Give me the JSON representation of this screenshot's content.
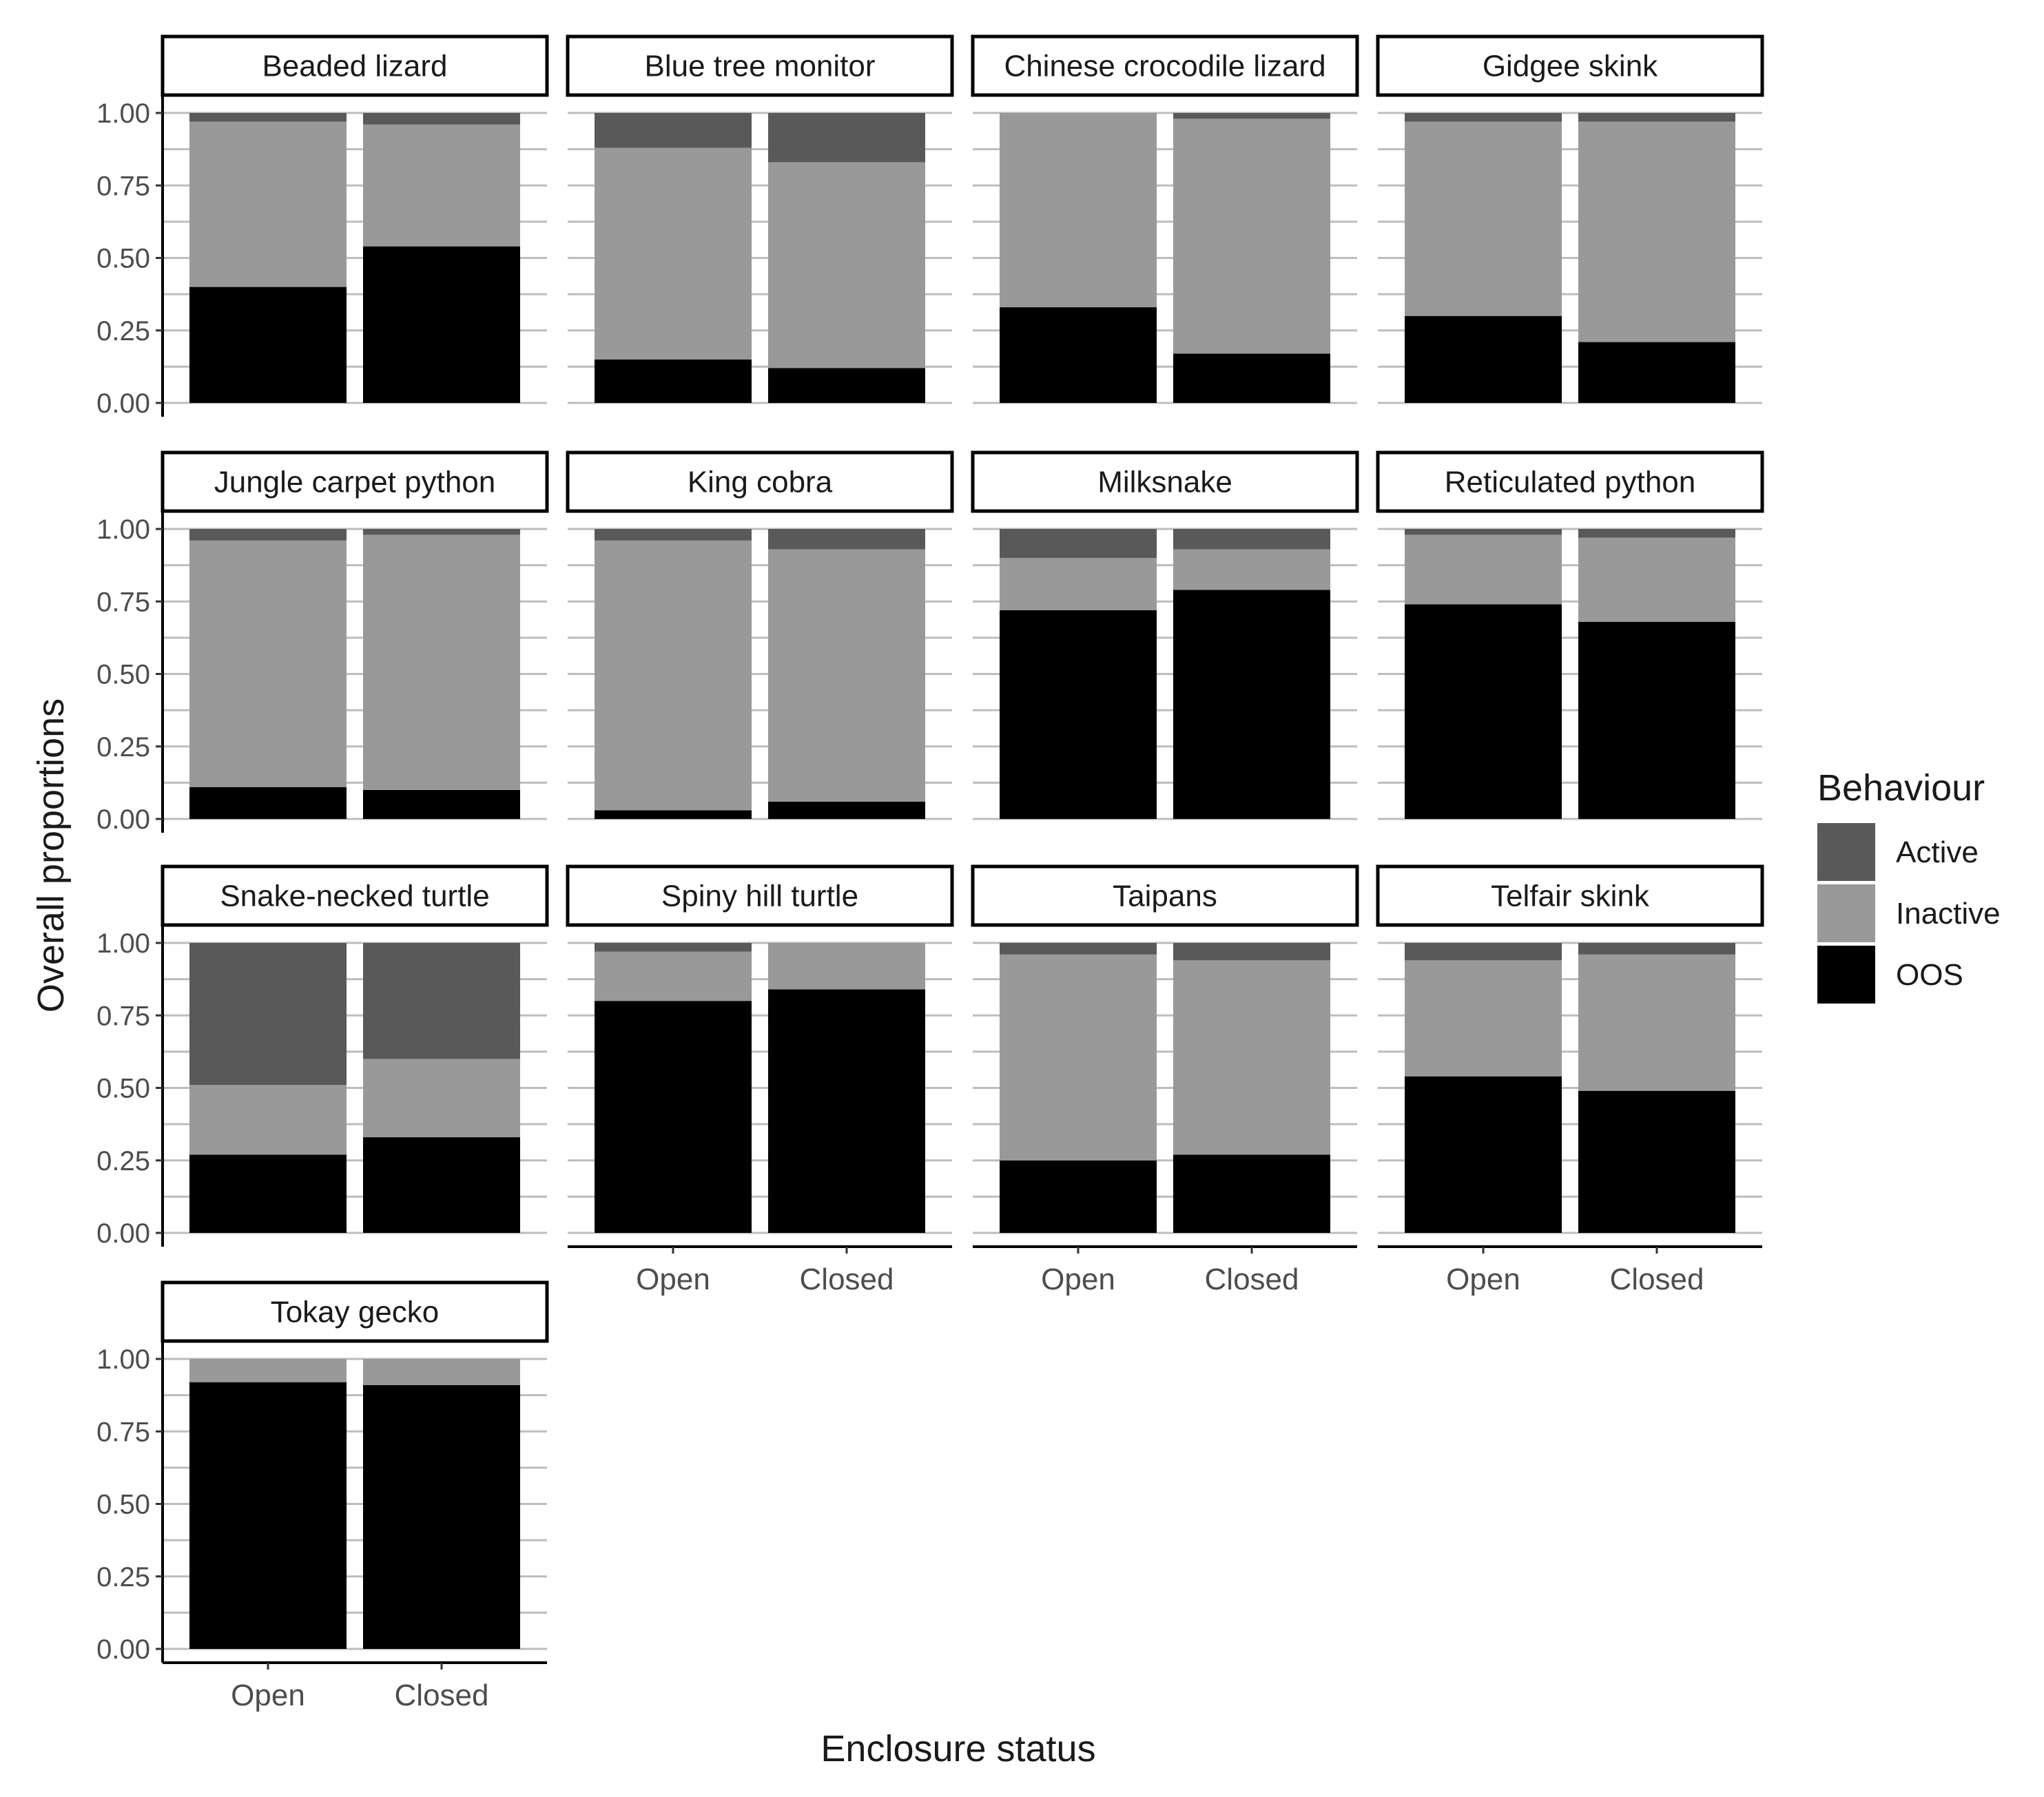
{
  "chart_data": {
    "type": "bar",
    "stacked": true,
    "facet_layout": "4 columns x 4 rows (13 panels)",
    "xlabel": "Enclosure status",
    "ylabel": "Overall proportions",
    "ylim": [
      0,
      1
    ],
    "y_ticks": [
      "0.00",
      "0.25",
      "0.50",
      "0.75",
      "1.00"
    ],
    "categories": [
      "Open",
      "Closed"
    ],
    "legend": {
      "title": "Behaviour",
      "position": "right",
      "entries": [
        {
          "name": "Active",
          "color": "#595959"
        },
        {
          "name": "Inactive",
          "color": "#999999"
        },
        {
          "name": "OOS",
          "color": "#000000"
        }
      ]
    },
    "colors": {
      "Active": "#595959",
      "Inactive": "#999999",
      "OOS": "#000000",
      "gridline": "#bdbdbd"
    },
    "panels": [
      {
        "title": "Beaded lizard",
        "series": [
          {
            "name": "OOS",
            "values": [
              0.4,
              0.54
            ]
          },
          {
            "name": "Inactive",
            "values": [
              0.57,
              0.42
            ]
          },
          {
            "name": "Active",
            "values": [
              0.03,
              0.04
            ]
          }
        ]
      },
      {
        "title": "Blue tree monitor",
        "series": [
          {
            "name": "OOS",
            "values": [
              0.15,
              0.12
            ]
          },
          {
            "name": "Inactive",
            "values": [
              0.73,
              0.71
            ]
          },
          {
            "name": "Active",
            "values": [
              0.12,
              0.17
            ]
          }
        ]
      },
      {
        "title": "Chinese crocodile lizard",
        "series": [
          {
            "name": "OOS",
            "values": [
              0.33,
              0.17
            ]
          },
          {
            "name": "Inactive",
            "values": [
              0.67,
              0.81
            ]
          },
          {
            "name": "Active",
            "values": [
              0.0,
              0.02
            ]
          }
        ]
      },
      {
        "title": "Gidgee skink",
        "series": [
          {
            "name": "OOS",
            "values": [
              0.3,
              0.21
            ]
          },
          {
            "name": "Inactive",
            "values": [
              0.67,
              0.76
            ]
          },
          {
            "name": "Active",
            "values": [
              0.03,
              0.03
            ]
          }
        ]
      },
      {
        "title": "Jungle carpet python",
        "series": [
          {
            "name": "OOS",
            "values": [
              0.11,
              0.1
            ]
          },
          {
            "name": "Inactive",
            "values": [
              0.85,
              0.88
            ]
          },
          {
            "name": "Active",
            "values": [
              0.04,
              0.02
            ]
          }
        ]
      },
      {
        "title": "King cobra",
        "series": [
          {
            "name": "OOS",
            "values": [
              0.03,
              0.06
            ]
          },
          {
            "name": "Inactive",
            "values": [
              0.93,
              0.87
            ]
          },
          {
            "name": "Active",
            "values": [
              0.04,
              0.07
            ]
          }
        ]
      },
      {
        "title": "Milksnake",
        "series": [
          {
            "name": "OOS",
            "values": [
              0.72,
              0.79
            ]
          },
          {
            "name": "Inactive",
            "values": [
              0.18,
              0.14
            ]
          },
          {
            "name": "Active",
            "values": [
              0.1,
              0.07
            ]
          }
        ]
      },
      {
        "title": "Reticulated python",
        "series": [
          {
            "name": "OOS",
            "values": [
              0.74,
              0.68
            ]
          },
          {
            "name": "Inactive",
            "values": [
              0.24,
              0.29
            ]
          },
          {
            "name": "Active",
            "values": [
              0.02,
              0.03
            ]
          }
        ]
      },
      {
        "title": "Snake-necked turtle",
        "series": [
          {
            "name": "OOS",
            "values": [
              0.27,
              0.33
            ]
          },
          {
            "name": "Inactive",
            "values": [
              0.24,
              0.27
            ]
          },
          {
            "name": "Active",
            "values": [
              0.49,
              0.4
            ]
          }
        ]
      },
      {
        "title": "Spiny hill turtle",
        "series": [
          {
            "name": "OOS",
            "values": [
              0.8,
              0.84
            ]
          },
          {
            "name": "Inactive",
            "values": [
              0.17,
              0.16
            ]
          },
          {
            "name": "Active",
            "values": [
              0.03,
              0.0
            ]
          }
        ]
      },
      {
        "title": "Taipans",
        "series": [
          {
            "name": "OOS",
            "values": [
              0.25,
              0.27
            ]
          },
          {
            "name": "Inactive",
            "values": [
              0.71,
              0.67
            ]
          },
          {
            "name": "Active",
            "values": [
              0.04,
              0.06
            ]
          }
        ]
      },
      {
        "title": "Telfair skink",
        "series": [
          {
            "name": "OOS",
            "values": [
              0.54,
              0.49
            ]
          },
          {
            "name": "Inactive",
            "values": [
              0.4,
              0.47
            ]
          },
          {
            "name": "Active",
            "values": [
              0.06,
              0.04
            ]
          }
        ]
      },
      {
        "title": "Tokay gecko",
        "series": [
          {
            "name": "OOS",
            "values": [
              0.92,
              0.91
            ]
          },
          {
            "name": "Inactive",
            "values": [
              0.08,
              0.09
            ]
          },
          {
            "name": "Active",
            "values": [
              0.0,
              0.0
            ]
          }
        ]
      }
    ]
  }
}
